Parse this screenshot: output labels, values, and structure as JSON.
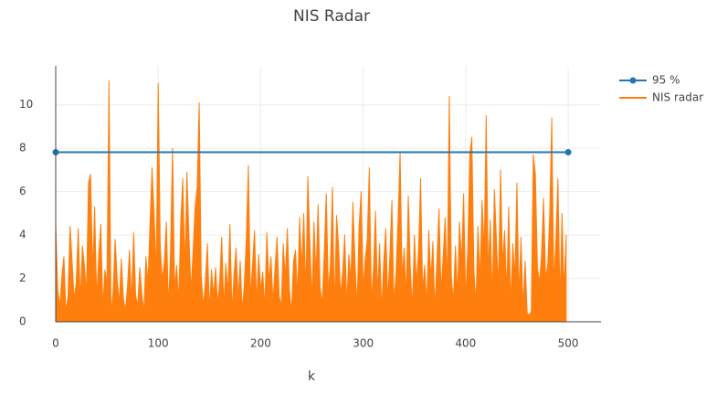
{
  "chart_data": {
    "type": "line",
    "title": "NIS Radar",
    "x_label": "k",
    "xlim": [
      0,
      532
    ],
    "ylim": [
      0,
      11.8
    ],
    "xticks": [
      0,
      100,
      200,
      300,
      400,
      500
    ],
    "yticks": [
      0,
      2,
      4,
      6,
      8,
      10
    ],
    "grid": true,
    "legend": "top-right",
    "series": [
      {
        "name": "95 %",
        "color": "#1f77b4",
        "markers": true,
        "fill": false,
        "x": [
          0,
          500
        ],
        "values": [
          7.815,
          7.815
        ]
      },
      {
        "name": "NIS radar",
        "color": "#ff7f0e",
        "markers": false,
        "fill": true,
        "x": [
          0,
          2,
          4,
          6,
          8,
          10,
          12,
          14,
          16,
          18,
          20,
          22,
          24,
          26,
          28,
          30,
          32,
          34,
          36,
          38,
          40,
          42,
          44,
          46,
          48,
          50,
          52,
          54,
          56,
          58,
          60,
          62,
          64,
          66,
          68,
          70,
          72,
          74,
          76,
          78,
          80,
          82,
          84,
          86,
          88,
          90,
          92,
          94,
          96,
          98,
          100,
          102,
          104,
          106,
          108,
          110,
          112,
          114,
          116,
          118,
          120,
          122,
          124,
          126,
          128,
          130,
          132,
          134,
          136,
          138,
          140,
          142,
          144,
          146,
          148,
          150,
          152,
          154,
          156,
          158,
          160,
          162,
          164,
          166,
          168,
          170,
          172,
          174,
          176,
          178,
          180,
          182,
          184,
          186,
          188,
          190,
          192,
          194,
          196,
          198,
          200,
          202,
          204,
          206,
          208,
          210,
          212,
          214,
          216,
          218,
          220,
          222,
          224,
          226,
          228,
          230,
          232,
          234,
          236,
          238,
          240,
          242,
          244,
          246,
          248,
          250,
          252,
          254,
          256,
          258,
          260,
          262,
          264,
          266,
          268,
          270,
          272,
          274,
          276,
          278,
          280,
          282,
          284,
          286,
          288,
          290,
          292,
          294,
          296,
          298,
          300,
          302,
          304,
          306,
          308,
          310,
          312,
          314,
          316,
          318,
          320,
          322,
          324,
          326,
          328,
          330,
          332,
          334,
          336,
          338,
          340,
          342,
          344,
          346,
          348,
          350,
          352,
          354,
          356,
          358,
          360,
          362,
          364,
          366,
          368,
          370,
          372,
          374,
          376,
          378,
          380,
          382,
          384,
          386,
          388,
          390,
          392,
          394,
          396,
          398,
          400,
          402,
          404,
          406,
          408,
          410,
          412,
          414,
          416,
          418,
          420,
          422,
          424,
          426,
          428,
          430,
          432,
          434,
          436,
          438,
          440,
          442,
          444,
          446,
          448,
          450,
          452,
          454,
          456,
          458,
          460,
          462,
          464,
          466,
          468,
          470,
          472,
          474,
          476,
          478,
          480,
          482,
          484,
          486,
          488,
          490,
          492,
          494,
          496,
          498
        ],
        "values": [
          4.5,
          1.5,
          0.7,
          2.1,
          3.0,
          0.4,
          1.2,
          4.4,
          2.8,
          1.0,
          1.8,
          4.3,
          0.9,
          3.5,
          2.6,
          1.3,
          6.4,
          6.8,
          2.2,
          5.3,
          1.0,
          3.1,
          4.5,
          0.6,
          2.4,
          1.7,
          11.1,
          0.3,
          1.4,
          3.8,
          2.0,
          0.8,
          2.9,
          1.1,
          0.5,
          1.6,
          3.3,
          0.9,
          4.1,
          1.2,
          0.7,
          2.5,
          1.3,
          0.4,
          3.0,
          1.8,
          4.5,
          7.1,
          5.0,
          2.2,
          11.0,
          3.5,
          1.9,
          2.8,
          4.6,
          0.6,
          3.2,
          8.0,
          1.5,
          2.6,
          0.9,
          4.6,
          6.6,
          2.3,
          6.9,
          4.0,
          1.4,
          3.2,
          5.3,
          6.2,
          10.1,
          2.1,
          0.7,
          1.8,
          3.6,
          0.5,
          2.4,
          1.2,
          2.5,
          0.8,
          1.9,
          3.9,
          0.6,
          2.7,
          1.3,
          4.5,
          0.4,
          2.2,
          3.4,
          1.0,
          2.8,
          0.5,
          1.7,
          3.9,
          7.2,
          1.1,
          2.6,
          4.2,
          0.8,
          3.1,
          1.4,
          2.3,
          0.6,
          4.1,
          1.8,
          3.0,
          0.9,
          2.5,
          3.9,
          1.2,
          0.7,
          3.6,
          2.0,
          4.3,
          1.5,
          0.4,
          2.8,
          3.3,
          1.1,
          4.8,
          2.4,
          5.0,
          1.3,
          6.7,
          3.7,
          0.9,
          4.6,
          2.1,
          5.4,
          1.6,
          0.8,
          3.2,
          5.9,
          1.4,
          2.6,
          6.2,
          0.5,
          4.9,
          3.5,
          1.2,
          2.3,
          4.0,
          0.7,
          3.1,
          1.9,
          5.5,
          2.8,
          0.6,
          4.4,
          6.0,
          1.5,
          2.9,
          3.8,
          7.1,
          0.9,
          2.4,
          5.1,
          1.2,
          3.6,
          0.5,
          2.7,
          4.3,
          1.0,
          3.0,
          5.6,
          0.8,
          2.2,
          4.7,
          7.8,
          2.0,
          3.4,
          1.1,
          5.8,
          2.5,
          0.6,
          4.0,
          1.7,
          3.3,
          6.6,
          1.4,
          2.6,
          0.7,
          4.2,
          1.9,
          3.7,
          0.5,
          2.9,
          5.2,
          1.3,
          3.0,
          4.8,
          1.6,
          10.4,
          2.1,
          0.9,
          3.5,
          1.2,
          4.6,
          2.7,
          5.9,
          1.0,
          3.3,
          7.7,
          8.5,
          2.4,
          0.8,
          4.4,
          1.9,
          5.6,
          3.1,
          9.5,
          2.2,
          4.7,
          0.9,
          6.1,
          3.8,
          1.5,
          7.0,
          2.6,
          4.2,
          1.3,
          5.3,
          0.7,
          3.6,
          2.0,
          6.4,
          1.1,
          3.9,
          0.6,
          2.8,
          0.4,
          0.3,
          0.5,
          7.7,
          6.8,
          2.5,
          1.8,
          3.1,
          5.7,
          2.0,
          2.6,
          4.9,
          9.4,
          1.7,
          3.8,
          6.6,
          0.9,
          5.0,
          1.4,
          4.0
        ]
      }
    ]
  }
}
